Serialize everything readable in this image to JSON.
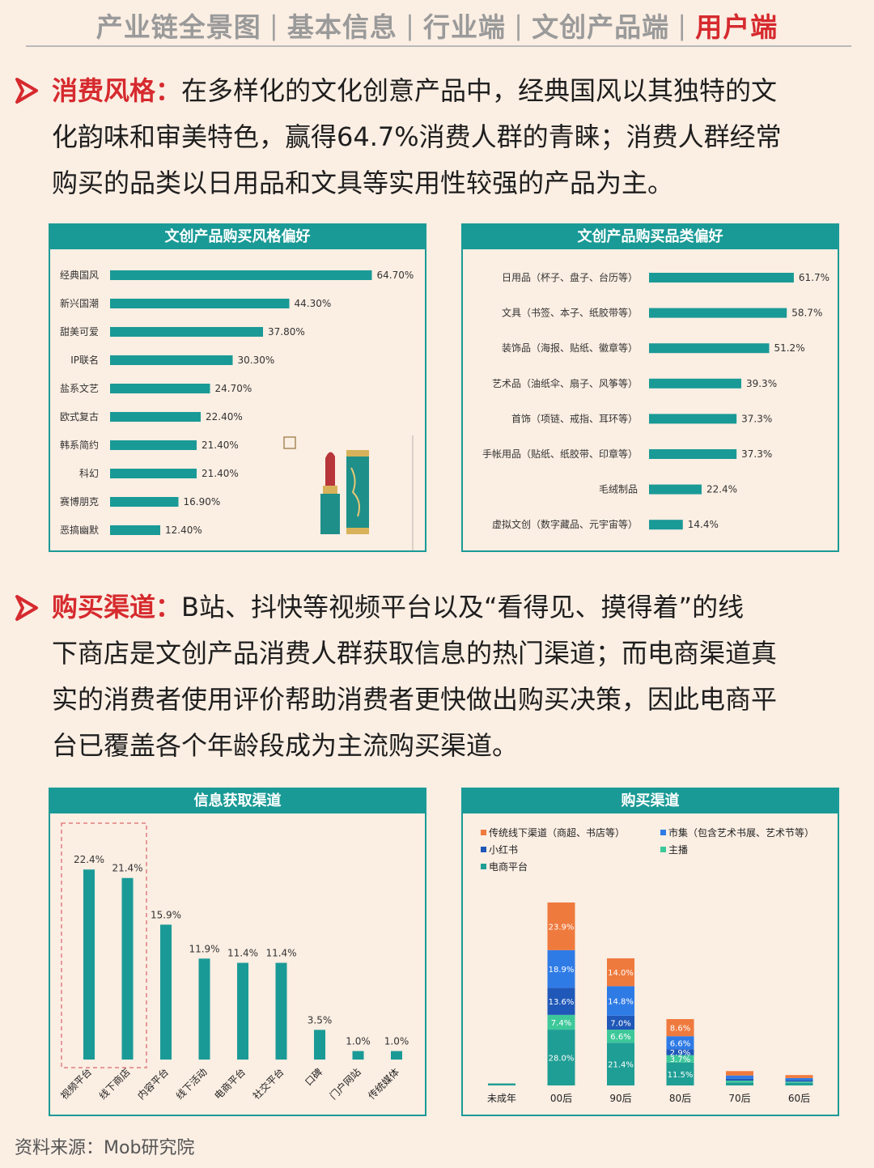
{
  "nav": {
    "items": [
      "产业链全景图",
      "基本信息",
      "行业端",
      "文创产品端",
      "用户端"
    ],
    "active_index": 4
  },
  "section1": {
    "keyword": "消费风格：",
    "lines": [
      "在多样化的文化创意产品中，经典国风以其独特的文",
      "化韵味和审美特色，赢得64.7%消费人群的青睐；消费人群经常",
      "购买的品类以日用品和文具等实用性较强的产品为主。"
    ]
  },
  "section2": {
    "keyword": "购买渠道：",
    "lines": [
      "B站、抖快等视频平台以及“看得见、摸得着”的线",
      "下商店是文创产品消费人群获取信息的热门渠道；而电商渠道真",
      "实的消费者使用评价帮助消费者更快做出购买决策，因此电商平",
      "台已覆盖各个年龄段成为主流购买渠道。"
    ]
  },
  "source": "资料来源：Mob研究院",
  "colors": {
    "teal": "#1a9a96",
    "accent_red": "#d62a2e",
    "orange": "#ef7a3e",
    "blue": "#2f7be6",
    "navy": "#1f58b8",
    "green": "#3dc89a",
    "dark_teal": "#1f9e95"
  },
  "chart_data": [
    {
      "type": "bar",
      "orientation": "horizontal",
      "title": "文创产品购买风格偏好",
      "categories": [
        "经典国风",
        "新兴国潮",
        "甜美可爱",
        "IP联名",
        "盐系文艺",
        "欧式复古",
        "韩系简约",
        "科幻",
        "赛博朋克",
        "恶搞幽默"
      ],
      "values": [
        64.7,
        44.3,
        37.8,
        30.3,
        24.7,
        22.4,
        21.4,
        21.4,
        16.9,
        12.4
      ],
      "labels": [
        "64.70%",
        "44.30%",
        "37.80%",
        "30.30%",
        "24.70%",
        "22.40%",
        "21.40%",
        "21.40%",
        "16.90%",
        "12.40%"
      ],
      "xlim": [
        0,
        70
      ],
      "grid": false
    },
    {
      "type": "bar",
      "orientation": "horizontal",
      "title": "文创产品购买品类偏好",
      "categories": [
        "日用品（杯子、盘子、台历等）",
        "文具（书签、本子、纸胶带等）",
        "装饰品（海报、贴纸、徽章等）",
        "艺术品（油纸伞、扇子、风筝等）",
        "首饰（项链、戒指、耳环等）",
        "手帐用品（贴纸、纸胶带、印章等）",
        "毛绒制品",
        "虚拟文创（数字藏品、元宇宙等）"
      ],
      "values": [
        61.7,
        58.7,
        51.2,
        39.3,
        37.3,
        37.3,
        22.4,
        14.4
      ],
      "labels": [
        "61.7%",
        "58.7%",
        "51.2%",
        "39.3%",
        "37.3%",
        "37.3%",
        "22.4%",
        "14.4%"
      ],
      "xlim": [
        0,
        70
      ],
      "grid": false
    },
    {
      "type": "bar",
      "orientation": "vertical",
      "title": "信息获取渠道",
      "categories": [
        "视频平台",
        "线下商店",
        "内容平台",
        "线下活动",
        "电商平台",
        "社交平台",
        "口碑",
        "门户网站",
        "传统媒体"
      ],
      "values": [
        22.4,
        21.4,
        15.9,
        11.9,
        11.4,
        11.4,
        3.5,
        1.0,
        1.0
      ],
      "labels": [
        "22.4%",
        "21.4%",
        "15.9%",
        "11.9%",
        "11.4%",
        "11.4%",
        "3.5%",
        "1.0%",
        "1.0%"
      ],
      "highlight": [
        "视频平台",
        "线下商店"
      ],
      "ylim": [
        0,
        25
      ],
      "grid": false
    },
    {
      "type": "bar",
      "stacked": true,
      "title": "购买渠道",
      "categories": [
        "未成年",
        "00后",
        "90后",
        "80后",
        "70后",
        "60后"
      ],
      "legend_placement": "top",
      "series": [
        {
          "name": "电商平台",
          "color": "#1f9e95",
          "values": [
            1.0,
            28.0,
            21.4,
            11.5,
            1.5,
            1.3
          ],
          "labels": [
            "",
            "28.0%",
            "21.4%",
            "11.5%",
            "",
            ""
          ]
        },
        {
          "name": "主播",
          "color": "#3dc89a",
          "values": [
            0,
            7.4,
            6.6,
            3.7,
            0.9,
            0.6
          ],
          "labels": [
            "",
            "7.4%",
            "6.6%",
            "3.7%",
            "",
            ""
          ]
        },
        {
          "name": "小红书",
          "color": "#1f58b8",
          "values": [
            0,
            13.6,
            7.0,
            2.9,
            1.0,
            0.8
          ],
          "labels": [
            "",
            "13.6%",
            "7.0%",
            "2.9%",
            "",
            ""
          ]
        },
        {
          "name": "市集（包含艺术书展、艺术节等）",
          "color": "#2f7be6",
          "values": [
            0,
            18.9,
            14.8,
            6.6,
            1.6,
            1.0
          ],
          "labels": [
            "",
            "18.9%",
            "14.8%",
            "6.6%",
            "",
            ""
          ]
        },
        {
          "name": "传统线下渠道（商超、书店等）",
          "color": "#ef7a3e",
          "values": [
            0,
            23.9,
            14.0,
            8.6,
            2.2,
            1.5
          ],
          "labels": [
            "",
            "23.9%",
            "14.0%",
            "8.6%",
            "",
            ""
          ]
        }
      ],
      "legend_order": [
        "传统线下渠道（商超、书店等）",
        "市集（包含艺术书展、艺术节等）",
        "小红书",
        "主播",
        "电商平台"
      ],
      "ylim": [
        0,
        100
      ],
      "grid": false
    }
  ]
}
